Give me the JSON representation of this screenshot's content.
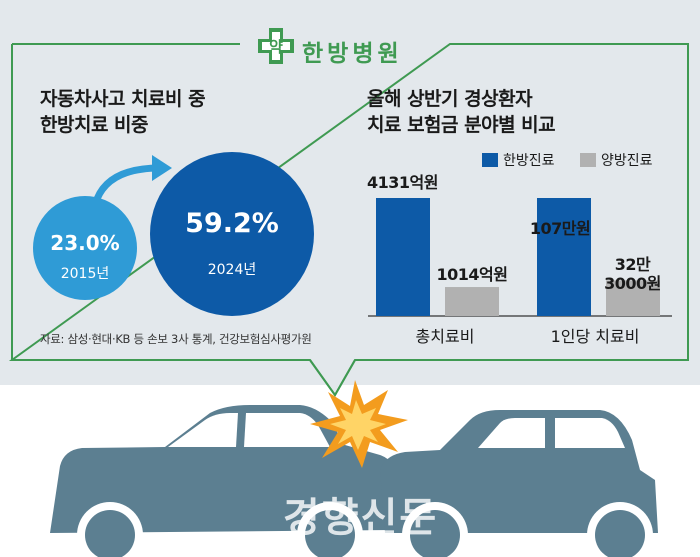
{
  "header": {
    "badge": "약",
    "title": "한방병원"
  },
  "left_panel": {
    "title_line1": "자동차사고 치료비 중",
    "title_line2": "한방치료 비중",
    "circles": [
      {
        "value": "23.0%",
        "year": "2015년"
      },
      {
        "value": "59.2%",
        "year": "2024년"
      }
    ],
    "source": "자료: 삼성·현대·KB 등 손보 3사 통계, 건강보험심사평가원"
  },
  "right_panel": {
    "title_line1": "올해 상반기 경상환자",
    "title_line2": "치료 보험금 분야별 비교"
  },
  "watermark": "경향신문",
  "colors": {
    "korean_medicine": "#0d5aa7",
    "western_medicine": "#b1b1b1",
    "light_circle": "#2f9bd6",
    "dark_circle": "#0d5aa7",
    "green": "#3f9a52",
    "panel_bg": "#e3e8ec",
    "car": "#5c7f91",
    "crash_star": "#f39c1e"
  },
  "chart_data": [
    {
      "type": "bubble",
      "title": "자동차사고 치료비 중 한방치료 비중",
      "categories": [
        "2015년",
        "2024년"
      ],
      "values": [
        23.0,
        59.2
      ],
      "unit": "%"
    },
    {
      "type": "bar",
      "title": "올해 상반기 경상환자 치료 보험금 분야별 비교",
      "categories": [
        "총치료비",
        "1인당 치료비"
      ],
      "series": [
        {
          "name": "한방진료",
          "values": [
            "4131억원",
            "107만원"
          ],
          "color": "#0d5aa7"
        },
        {
          "name": "양방진료",
          "values": [
            "1014억원",
            "32만 3000원"
          ],
          "color": "#b1b1b1"
        }
      ],
      "legend": "top-right"
    }
  ]
}
